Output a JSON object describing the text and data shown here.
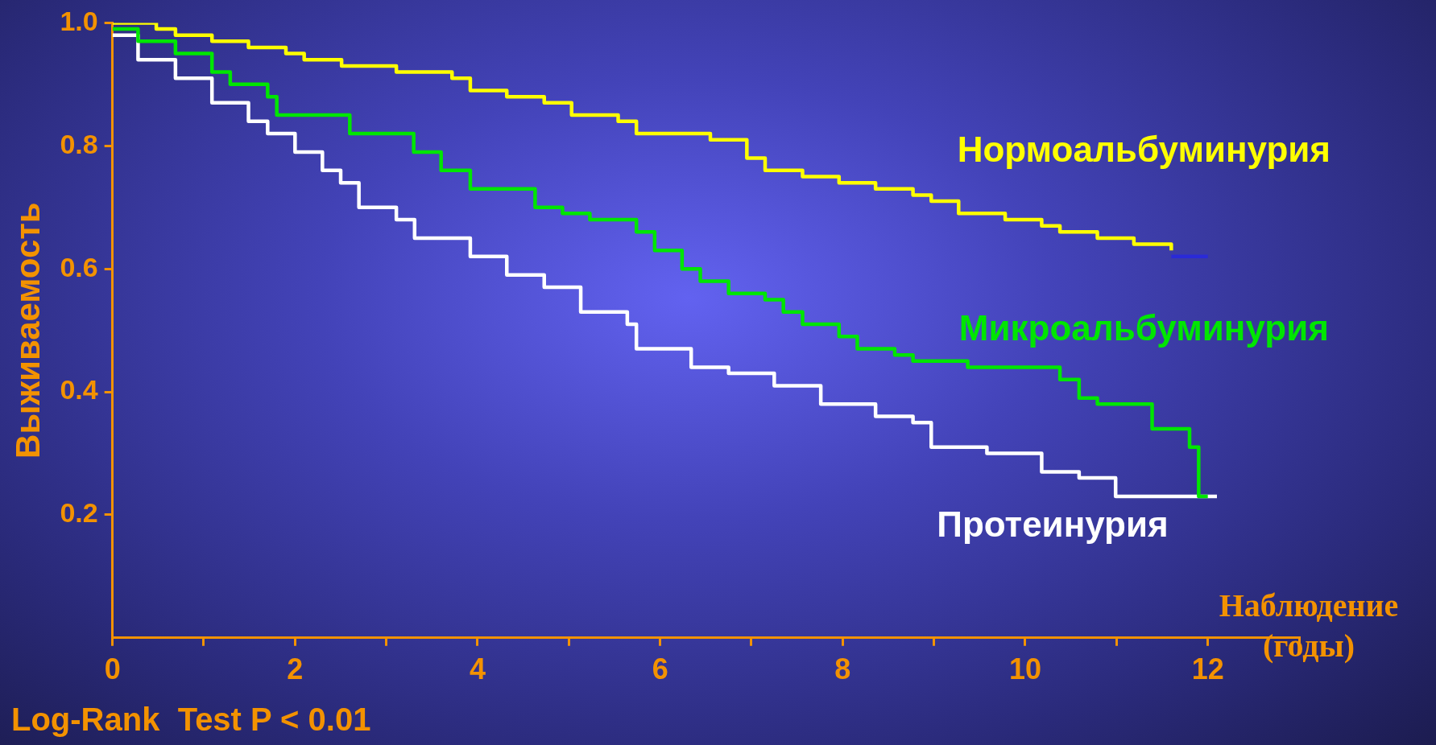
{
  "chart_data": {
    "type": "step",
    "xlabel": "Наблюдение (годы)",
    "ylabel": "Выживаемость",
    "annotations": [
      "Log-Rank  Test P < 0.01"
    ],
    "xlim": [
      0,
      13
    ],
    "ylim": [
      0,
      1
    ],
    "xticks": [
      0,
      {
        "value": 1,
        "label": null
      },
      2,
      {
        "value": 3,
        "label": null
      },
      4,
      {
        "value": 5,
        "label": null
      },
      6,
      {
        "value": 7,
        "label": null
      },
      8,
      {
        "value": 9,
        "label": null
      },
      10,
      {
        "value": 11,
        "label": null
      },
      12,
      {
        "value": 13,
        "label": null
      }
    ],
    "yticks": [
      {
        "value": 0.2,
        "label": "0.2"
      },
      {
        "value": 0.4,
        "label": "0.4"
      },
      {
        "value": 0.6,
        "label": "0.6"
      },
      {
        "value": 0.8,
        "label": "0.8"
      },
      {
        "value": 1,
        "label": "1.0"
      }
    ],
    "grid": false,
    "legend": false,
    "marker": "none",
    "line_style": "solid",
    "series": [
      {
        "name": "Нормоальбуминурия",
        "color": "#ffff00",
        "x": [
          0,
          0.48,
          0.69,
          1.09,
          1.49,
          1.9,
          2.1,
          2.51,
          3.11,
          3.72,
          3.92,
          4.32,
          4.73,
          5.03,
          5.54,
          5.74,
          6.24,
          6.55,
          6.95,
          7.15,
          7.56,
          7.96,
          8.36,
          8.77,
          8.97,
          9.27,
          9.78,
          10.18,
          10.38,
          10.79,
          11.19,
          11.6
        ],
        "values": [
          1,
          0.99,
          0.98,
          0.97,
          0.96,
          0.95,
          0.94,
          0.93,
          0.92,
          0.91,
          0.89,
          0.88,
          0.87,
          0.85,
          0.84,
          0.82,
          0.82,
          0.81,
          0.78,
          0.76,
          0.75,
          0.74,
          0.73,
          0.72,
          0.71,
          0.69,
          0.68,
          0.67,
          0.66,
          0.65,
          0.64,
          0.63
        ]
      },
      {
        "color": "#2a2ad8",
        "x": [
          11.6,
          12.0
        ],
        "values": [
          0.62,
          0.62
        ]
      },
      {
        "name": "Микроальбуминурия",
        "color": "#00e600",
        "x": [
          0,
          0.28,
          0.69,
          1.09,
          1.29,
          1.7,
          1.8,
          2.6,
          3.3,
          3.6,
          3.92,
          4.63,
          4.93,
          5.23,
          5.74,
          5.94,
          6.24,
          6.44,
          6.75,
          7.15,
          7.35,
          7.56,
          7.96,
          8.16,
          8.57,
          8.77,
          9.37,
          10.38,
          10.59,
          10.79,
          11.39,
          11.8,
          11.9,
          12.0
        ],
        "values": [
          0.99,
          0.97,
          0.95,
          0.92,
          0.9,
          0.88,
          0.85,
          0.82,
          0.79,
          0.76,
          0.73,
          0.7,
          0.69,
          0.68,
          0.66,
          0.63,
          0.6,
          0.58,
          0.56,
          0.55,
          0.53,
          0.51,
          0.49,
          0.47,
          0.46,
          0.45,
          0.44,
          0.42,
          0.39,
          0.38,
          0.34,
          0.31,
          0.23,
          0.23
        ]
      },
      {
        "name": "Протеинурия",
        "color": "#ffffff",
        "x": [
          0,
          0.28,
          0.69,
          1.09,
          1.49,
          1.7,
          2.0,
          2.3,
          2.5,
          2.7,
          3.11,
          3.31,
          3.92,
          4.32,
          4.73,
          5.13,
          5.64,
          5.74,
          6.34,
          6.75,
          7.25,
          7.76,
          8.36,
          8.77,
          8.97,
          9.58,
          10.18,
          10.59,
          10.99,
          12.1
        ],
        "values": [
          0.98,
          0.94,
          0.91,
          0.87,
          0.84,
          0.82,
          0.79,
          0.76,
          0.74,
          0.7,
          0.68,
          0.65,
          0.62,
          0.59,
          0.57,
          0.53,
          0.51,
          0.47,
          0.44,
          0.43,
          0.41,
          0.38,
          0.36,
          0.35,
          0.31,
          0.3,
          0.27,
          0.26,
          0.23,
          0.23
        ]
      }
    ]
  }
}
